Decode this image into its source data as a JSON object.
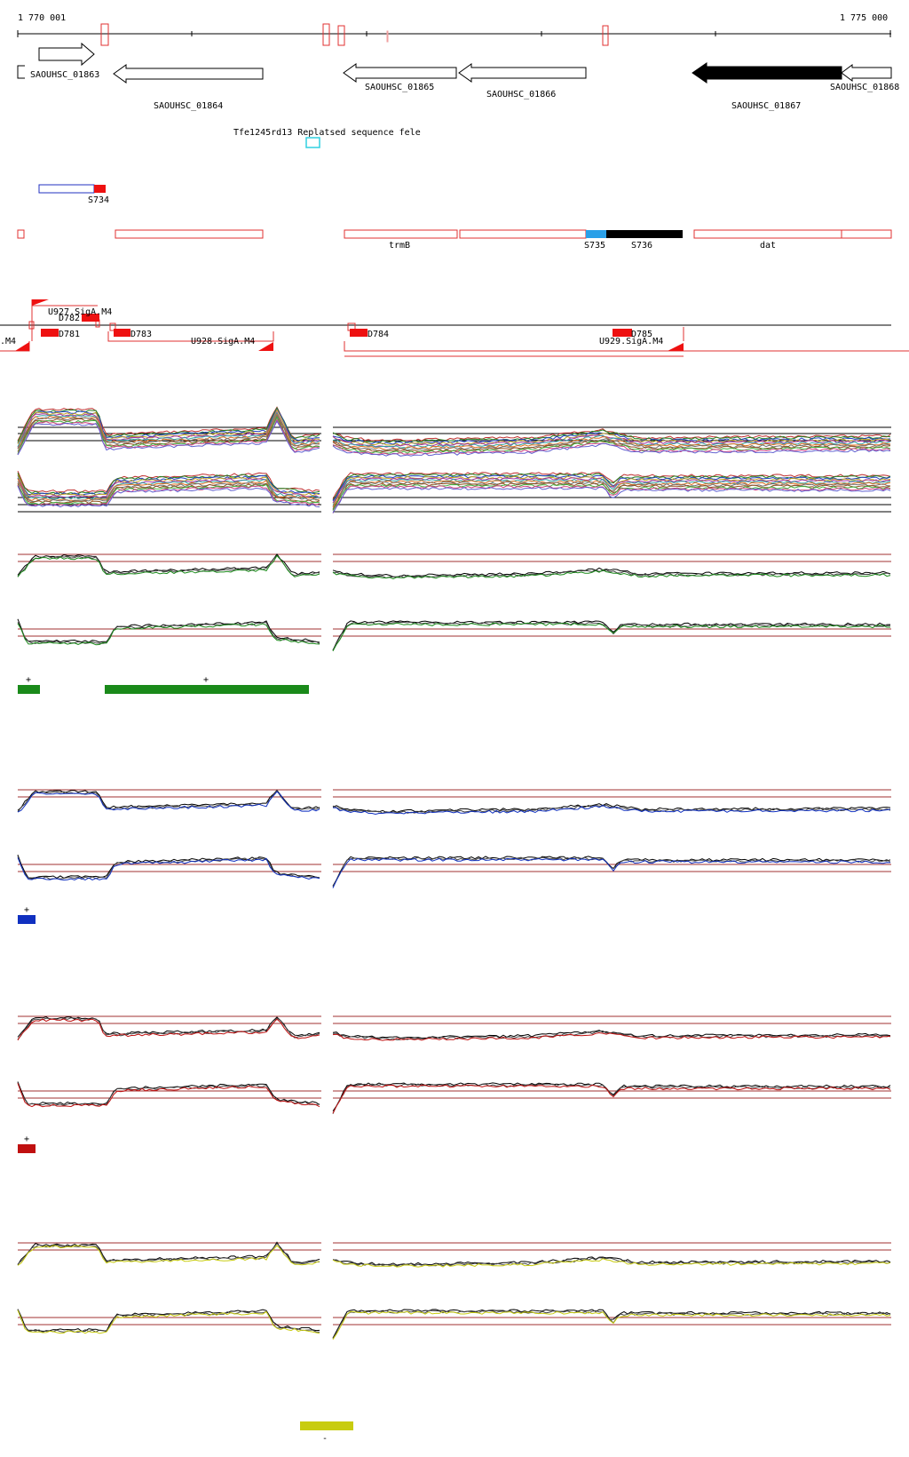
{
  "ruler": {
    "start_label": "1 770 001",
    "end_label": "1 775 000"
  },
  "genes": [
    {
      "label": "SAOUHSC_01863"
    },
    {
      "label": "SAOUHSC_01864"
    },
    {
      "label": "SAOUHSC_01865"
    },
    {
      "label": "SAOUHSC_01866"
    },
    {
      "label": "SAOUHSC_01867"
    },
    {
      "label": "SAOUHSC_01868"
    }
  ],
  "misc_feature": {
    "overlapping_text": "Tfe1245rd13 Replatsed sequence fele"
  },
  "segments_a": [
    {
      "label": "S734"
    }
  ],
  "segments_b": [
    {
      "label": "trmB"
    },
    {
      "label": "S735"
    },
    {
      "label": "S736"
    },
    {
      "label": "dat"
    }
  ],
  "regulatory": [
    {
      "label": "U927.SigA.M4"
    },
    {
      "label": "D782"
    },
    {
      "label": ".M4"
    },
    {
      "label": "D781"
    },
    {
      "label": "D783"
    },
    {
      "label": "U928.SigA.M4"
    },
    {
      "label": "D784"
    },
    {
      "label": "D785"
    },
    {
      "label": "U929.SigA.M4"
    }
  ],
  "condition_panels": [
    {
      "name": "green",
      "color": "#1a8a1a",
      "marks": [
        "+",
        "+"
      ]
    },
    {
      "name": "blue",
      "color": "#1030c0",
      "marks": [
        "+"
      ]
    },
    {
      "name": "red",
      "color": "#c01010",
      "marks": [
        "+"
      ]
    },
    {
      "name": "yellow",
      "color": "#c8cc10",
      "marks": [
        "-"
      ]
    }
  ],
  "colors": {
    "outline_red": "#e03030",
    "fill_red": "#ee1111",
    "s735_blue": "#2aa0e8",
    "cyan_box": "#30d0e0",
    "segment_blue": "#2030c0",
    "threshold": "#a03030"
  }
}
